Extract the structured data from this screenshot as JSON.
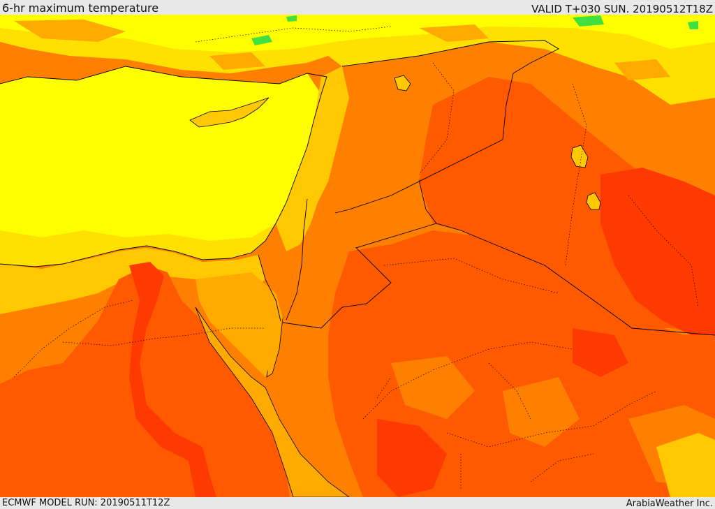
{
  "header": {
    "title": "6-hr maximum temperature",
    "valid": "VALID T+030 SUN. 20190512T18Z"
  },
  "footer": {
    "model_run": "ECMWF MODEL RUN: 20190511T12Z",
    "credit": "ArabiaWeather Inc."
  },
  "map": {
    "colors": {
      "yellow": "#ffff00",
      "light_gold": "#ffe000",
      "gold": "#ffc800",
      "light_orange": "#ffaa00",
      "orange": "#ff8000",
      "dark_orange": "#ff5a00",
      "red_orange": "#ff3a00",
      "green": "#40e040",
      "border": "#000000"
    }
  }
}
